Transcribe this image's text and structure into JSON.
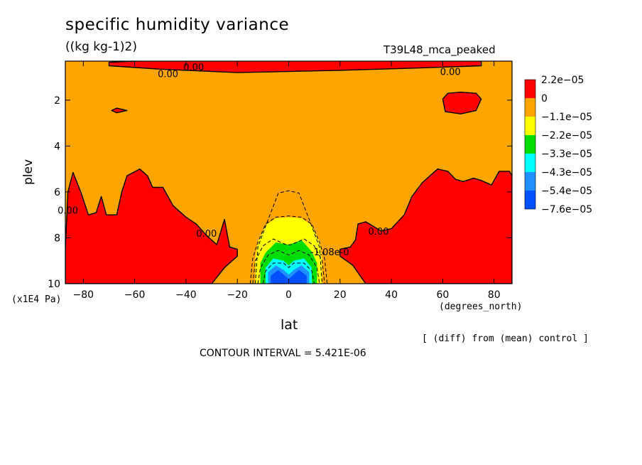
{
  "chart_data": {
    "type": "heatmap",
    "title": "specific humidity variance",
    "units": "((kg kg-1)2)",
    "experiment": "T39L48_mca_peaked",
    "xlabel": "lat",
    "x_unit_label": "(degrees_north)",
    "ylabel": "plev",
    "y_scale_label": "(x1E4 Pa)",
    "note": "[ (diff) from (mean) control ]",
    "contour_interval_text": "CONTOUR INTERVAL = 5.421E-06",
    "xlim": [
      -87,
      87
    ],
    "ylim": [
      10,
      0.3
    ],
    "x_ticks": [
      -80,
      -60,
      -40,
      -20,
      0,
      20,
      40,
      60,
      80
    ],
    "x_tick_labels": [
      "−80",
      "−60",
      "−40",
      "−20",
      "0",
      "20",
      "40",
      "60",
      "80"
    ],
    "y_ticks": [
      2,
      4,
      6,
      8,
      10
    ],
    "y_tick_labels": [
      "2",
      "4",
      "6",
      "8",
      "10"
    ],
    "legend": {
      "placement": "right",
      "levels": [
        "2.2e−05",
        "0",
        "−1.1e−05",
        "−2.2e−05",
        "−3.3e−05",
        "−4.3e−05",
        "−5.4e−05",
        "−7.6e−05"
      ],
      "colors": [
        "#ff0000",
        "#ffa500",
        "#ffff00",
        "#00dd00",
        "#00ffff",
        "#1e90ff",
        "#0050ff"
      ]
    },
    "background_color": "#ffa500",
    "contour_labels": [
      {
        "text": "0.00",
        "lat": -37,
        "plev": 0.55
      },
      {
        "text": "0.00",
        "lat": -47,
        "plev": 0.85
      },
      {
        "text": "0.00",
        "lat": 63,
        "plev": 0.75
      },
      {
        "text": "0.00",
        "lat": -86,
        "plev": 6.8
      },
      {
        "text": "0.00",
        "lat": -32,
        "plev": 7.8
      },
      {
        "text": "0.00",
        "lat": 35,
        "plev": 7.7
      },
      {
        "text": "-1.08e-0",
        "lat": 16,
        "plev": 8.6
      }
    ],
    "regions": [
      {
        "level": "positive",
        "color": "#ff0000",
        "points": [
          [
            -70,
            0.35
          ],
          [
            -40,
            0.2
          ],
          [
            -20,
            0.15
          ],
          [
            20,
            0.15
          ],
          [
            50,
            0.18
          ],
          [
            75,
            0.2
          ],
          [
            75,
            0.5
          ],
          [
            50,
            0.6
          ],
          [
            20,
            0.7
          ],
          [
            -20,
            0.8
          ],
          [
            -50,
            0.65
          ],
          [
            -70,
            0.5
          ]
        ]
      },
      {
        "level": "positive",
        "color": "#ff0000",
        "points": [
          [
            60,
            1.95
          ],
          [
            62,
            1.7
          ],
          [
            67,
            1.65
          ],
          [
            73,
            1.7
          ],
          [
            75,
            1.95
          ],
          [
            73,
            2.45
          ],
          [
            67,
            2.6
          ],
          [
            61,
            2.5
          ]
        ]
      },
      {
        "level": "positive",
        "color": "#ff0000",
        "points": [
          [
            -69,
            2.45
          ],
          [
            -67,
            2.35
          ],
          [
            -63,
            2.45
          ],
          [
            -67,
            2.55
          ]
        ]
      },
      {
        "level": "positive",
        "color": "#ff0000",
        "points": [
          [
            -87,
            10
          ],
          [
            -87,
            8.5
          ],
          [
            -86,
            6.0
          ],
          [
            -84,
            5.15
          ],
          [
            -81,
            6.0
          ],
          [
            -78,
            7.0
          ],
          [
            -75,
            6.9
          ],
          [
            -73,
            6.2
          ],
          [
            -71,
            7.0
          ],
          [
            -67,
            7.0
          ],
          [
            -65,
            6.0
          ],
          [
            -63,
            5.3
          ],
          [
            -58,
            5.0
          ],
          [
            -55,
            5.3
          ],
          [
            -53,
            5.8
          ],
          [
            -49,
            5.8
          ],
          [
            -45,
            6.6
          ],
          [
            -40,
            7.1
          ],
          [
            -36,
            7.4
          ],
          [
            -32,
            7.9
          ],
          [
            -28,
            8.3
          ],
          [
            -25,
            7.2
          ],
          [
            -23,
            8.4
          ],
          [
            -20,
            8.5
          ],
          [
            -20,
            8.8
          ],
          [
            -25,
            9.3
          ],
          [
            -30,
            10
          ]
        ]
      },
      {
        "level": "positive",
        "color": "#ff0000",
        "points": [
          [
            30,
            10
          ],
          [
            25,
            9.2
          ],
          [
            20,
            8.8
          ],
          [
            20,
            8.5
          ],
          [
            24,
            8.4
          ],
          [
            26,
            8.1
          ],
          [
            27,
            7.4
          ],
          [
            30,
            7.3
          ],
          [
            36,
            7.7
          ],
          [
            40,
            7.6
          ],
          [
            45,
            7.0
          ],
          [
            48,
            6.2
          ],
          [
            52,
            5.6
          ],
          [
            58,
            5.0
          ],
          [
            62,
            5.1
          ],
          [
            65,
            5.45
          ],
          [
            68,
            5.55
          ],
          [
            72,
            5.4
          ],
          [
            75,
            5.5
          ],
          [
            79,
            5.7
          ],
          [
            82,
            5.1
          ],
          [
            86,
            5.1
          ],
          [
            87,
            5.3
          ],
          [
            87,
            10
          ]
        ]
      },
      {
        "level": "neg1",
        "color": "#ffff00",
        "points": [
          [
            -13,
            10
          ],
          [
            -13,
            8.9
          ],
          [
            -12,
            8.15
          ],
          [
            -9,
            7.45
          ],
          [
            -5,
            7.15
          ],
          [
            0,
            7.1
          ],
          [
            5,
            7.15
          ],
          [
            9,
            7.45
          ],
          [
            12,
            8.15
          ],
          [
            13,
            8.9
          ],
          [
            13,
            10
          ]
        ]
      },
      {
        "level": "neg2",
        "color": "#00dd00",
        "points": [
          [
            -11,
            10
          ],
          [
            -11,
            9.1
          ],
          [
            -9,
            8.65
          ],
          [
            -5,
            8.2
          ],
          [
            0,
            8.3
          ],
          [
            5,
            8.1
          ],
          [
            9,
            8.6
          ],
          [
            11,
            9.1
          ],
          [
            11,
            10
          ]
        ]
      },
      {
        "level": "neg3",
        "color": "#00ffff",
        "points": [
          [
            -9,
            10
          ],
          [
            -9,
            9.3
          ],
          [
            -6,
            8.9
          ],
          [
            -2,
            9.0
          ],
          [
            0,
            9.2
          ],
          [
            2,
            9.0
          ],
          [
            6,
            8.9
          ],
          [
            9,
            9.3
          ],
          [
            9,
            10
          ]
        ]
      },
      {
        "level": "neg4",
        "color": "#1e90ff",
        "points": [
          [
            -8,
            10
          ],
          [
            -8,
            9.5
          ],
          [
            -5,
            9.2
          ],
          [
            -2,
            9.4
          ],
          [
            0,
            9.6
          ],
          [
            2,
            9.4
          ],
          [
            5,
            9.2
          ],
          [
            8,
            9.5
          ],
          [
            8,
            10
          ]
        ]
      },
      {
        "level": "neg5",
        "color": "#0050ff",
        "points": [
          [
            -7,
            10
          ],
          [
            -7,
            9.65
          ],
          [
            -4,
            9.4
          ],
          [
            -2,
            9.6
          ],
          [
            0,
            9.8
          ],
          [
            2,
            9.6
          ],
          [
            4,
            9.4
          ],
          [
            7,
            9.65
          ],
          [
            7,
            10
          ]
        ]
      }
    ],
    "dashed_contours": [
      {
        "points": [
          [
            -13,
            10
          ],
          [
            -12,
            8.4
          ],
          [
            -8,
            7.2
          ],
          [
            -4,
            6.05
          ],
          [
            0,
            5.95
          ],
          [
            4,
            6.05
          ],
          [
            8,
            7.2
          ],
          [
            12,
            8.4
          ],
          [
            13,
            10
          ]
        ]
      },
      {
        "points": [
          [
            -15,
            10
          ],
          [
            -14,
            8.9
          ],
          [
            -12,
            8.2
          ],
          [
            -9,
            7.4
          ],
          [
            -5,
            7.1
          ],
          [
            0,
            7.05
          ],
          [
            5,
            7.1
          ],
          [
            9,
            7.4
          ],
          [
            12,
            8.2
          ],
          [
            14,
            8.9
          ],
          [
            15,
            10
          ]
        ]
      },
      {
        "points": [
          [
            -14,
            10
          ],
          [
            -13,
            9.0
          ],
          [
            -10,
            8.35
          ],
          [
            -6,
            8.05
          ],
          [
            -1,
            8.3
          ],
          [
            1,
            8.3
          ],
          [
            6,
            8.05
          ],
          [
            10,
            8.35
          ],
          [
            13,
            9.0
          ],
          [
            14,
            10
          ]
        ]
      },
      {
        "points": [
          [
            -12,
            10
          ],
          [
            -11,
            9.3
          ],
          [
            -8,
            8.75
          ],
          [
            -4,
            8.55
          ],
          [
            0,
            8.75
          ],
          [
            4,
            8.55
          ],
          [
            8,
            8.75
          ],
          [
            11,
            9.3
          ],
          [
            12,
            10
          ]
        ]
      },
      {
        "points": [
          [
            -10,
            10
          ],
          [
            -9,
            9.45
          ],
          [
            -6,
            9.1
          ],
          [
            -2,
            9.1
          ],
          [
            0,
            9.3
          ],
          [
            2,
            9.1
          ],
          [
            6,
            9.1
          ],
          [
            9,
            9.45
          ],
          [
            10,
            10
          ]
        ]
      }
    ]
  }
}
